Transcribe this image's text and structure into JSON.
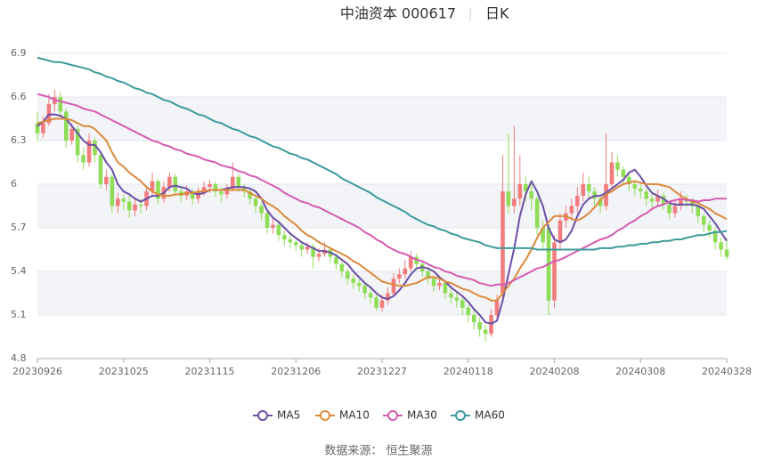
{
  "chart_data": {
    "type": "candlestick",
    "title": "中油资本 000617",
    "subtitle": "日K",
    "source": "数据来源：  恒生聚源",
    "categories": [
      "20230926",
      null,
      null,
      null,
      null,
      null,
      null,
      null,
      null,
      null,
      null,
      null,
      null,
      null,
      null,
      "20231025",
      null,
      null,
      null,
      null,
      null,
      null,
      null,
      null,
      null,
      null,
      null,
      null,
      null,
      null,
      "20231115",
      null,
      null,
      null,
      null,
      null,
      null,
      null,
      null,
      null,
      null,
      null,
      null,
      null,
      null,
      "20231206",
      null,
      null,
      null,
      null,
      null,
      null,
      null,
      null,
      null,
      null,
      null,
      null,
      null,
      null,
      "20231227",
      null,
      null,
      null,
      null,
      null,
      null,
      null,
      null,
      null,
      null,
      null,
      null,
      null,
      null,
      "20240118",
      null,
      null,
      null,
      null,
      null,
      null,
      null,
      null,
      null,
      null,
      null,
      null,
      null,
      null,
      "20240208",
      null,
      null,
      null,
      null,
      null,
      null,
      null,
      null,
      null,
      null,
      null,
      null,
      null,
      null,
      "20240308",
      null,
      null,
      null,
      null,
      null,
      null,
      null,
      null,
      null,
      null,
      null,
      null,
      null,
      null,
      "20240328"
    ],
    "open": [
      6.42,
      6.35,
      6.42,
      6.55,
      6.6,
      6.5,
      6.3,
      6.38,
      6.2,
      6.15,
      6.3,
      6.2,
      6.0,
      6.05,
      5.85,
      5.9,
      5.88,
      5.82,
      5.86,
      5.85,
      5.95,
      6.02,
      5.9,
      5.98,
      6.05,
      5.95,
      5.92,
      5.95,
      5.9,
      5.95,
      5.98,
      6.0,
      5.95,
      5.93,
      5.97,
      6.05,
      5.98,
      5.95,
      5.9,
      5.85,
      5.8,
      5.7,
      5.72,
      5.65,
      5.62,
      5.6,
      5.58,
      5.55,
      5.57,
      5.5,
      5.52,
      5.55,
      5.5,
      5.45,
      5.4,
      5.35,
      5.32,
      5.3,
      5.25,
      5.22,
      5.15,
      5.2,
      5.25,
      5.35,
      5.38,
      5.42,
      5.5,
      5.45,
      5.4,
      5.35,
      5.3,
      5.32,
      5.25,
      5.22,
      5.2,
      5.15,
      5.1,
      5.05,
      5.0,
      4.97,
      5.1,
      5.25,
      5.95,
      5.85,
      5.9,
      6.0,
      5.95,
      5.9,
      5.7,
      5.7,
      5.2,
      5.6,
      5.75,
      5.8,
      5.85,
      5.92,
      6.0,
      5.95,
      5.9,
      5.85,
      6.0,
      6.15,
      6.1,
      6.05,
      6.0,
      5.97,
      5.95,
      5.9,
      5.88,
      5.92,
      5.86,
      5.8,
      5.85,
      5.9,
      5.88,
      5.85,
      5.78,
      5.72,
      5.68,
      5.6,
      5.55
    ],
    "close": [
      6.35,
      6.42,
      6.55,
      6.6,
      6.5,
      6.3,
      6.38,
      6.2,
      6.15,
      6.3,
      6.2,
      6.0,
      6.05,
      5.85,
      5.9,
      5.88,
      5.82,
      5.86,
      5.85,
      5.95,
      6.02,
      5.9,
      5.98,
      6.05,
      5.95,
      5.92,
      5.95,
      5.9,
      5.95,
      5.98,
      6.0,
      5.95,
      5.93,
      5.97,
      6.05,
      5.98,
      5.95,
      5.9,
      5.85,
      5.8,
      5.7,
      5.72,
      5.65,
      5.62,
      5.6,
      5.58,
      5.55,
      5.57,
      5.5,
      5.52,
      5.55,
      5.5,
      5.45,
      5.4,
      5.35,
      5.32,
      5.3,
      5.25,
      5.22,
      5.15,
      5.2,
      5.25,
      5.35,
      5.38,
      5.42,
      5.5,
      5.45,
      5.4,
      5.35,
      5.3,
      5.32,
      5.25,
      5.22,
      5.2,
      5.15,
      5.1,
      5.05,
      5.0,
      4.97,
      5.1,
      5.2,
      5.95,
      5.85,
      5.9,
      6.0,
      5.95,
      5.9,
      5.7,
      5.6,
      5.2,
      5.6,
      5.75,
      5.8,
      5.85,
      5.92,
      6.0,
      5.95,
      5.9,
      5.85,
      6.0,
      6.15,
      6.1,
      6.05,
      6.0,
      5.97,
      5.95,
      5.9,
      5.88,
      5.92,
      5.86,
      5.8,
      5.85,
      5.9,
      5.88,
      5.85,
      5.78,
      5.72,
      5.68,
      5.6,
      5.55,
      5.5
    ],
    "low": [
      6.3,
      6.32,
      6.4,
      6.5,
      6.45,
      6.25,
      6.27,
      6.15,
      6.1,
      6.12,
      6.15,
      5.97,
      5.96,
      5.8,
      5.8,
      5.82,
      5.77,
      5.78,
      5.8,
      5.82,
      5.92,
      5.86,
      5.87,
      5.95,
      5.92,
      5.88,
      5.89,
      5.86,
      5.87,
      5.92,
      5.94,
      5.91,
      5.88,
      5.9,
      5.95,
      5.95,
      5.91,
      5.86,
      5.8,
      5.75,
      5.66,
      5.66,
      5.61,
      5.58,
      5.56,
      5.54,
      5.5,
      5.52,
      5.42,
      5.47,
      5.5,
      5.46,
      5.41,
      5.36,
      5.31,
      5.28,
      5.26,
      5.21,
      5.18,
      5.13,
      5.12,
      5.17,
      5.23,
      5.32,
      5.35,
      5.4,
      5.41,
      5.36,
      5.31,
      5.26,
      5.27,
      5.21,
      5.18,
      5.15,
      5.1,
      5.05,
      5.0,
      4.95,
      4.92,
      4.95,
      5.08,
      5.22,
      5.8,
      5.8,
      5.85,
      5.88,
      5.82,
      5.65,
      5.55,
      5.1,
      5.15,
      5.55,
      5.7,
      5.75,
      5.8,
      5.88,
      5.9,
      5.85,
      5.8,
      5.82,
      5.97,
      6.05,
      6.0,
      5.95,
      5.92,
      5.9,
      5.85,
      5.83,
      5.84,
      5.82,
      5.76,
      5.77,
      5.82,
      5.84,
      5.8,
      5.73,
      5.67,
      5.63,
      5.55,
      5.5,
      5.48
    ],
    "high": [
      6.5,
      6.47,
      6.62,
      6.65,
      6.63,
      6.52,
      6.42,
      6.4,
      6.25,
      6.35,
      6.32,
      6.22,
      6.1,
      6.07,
      5.94,
      5.93,
      5.92,
      5.9,
      5.9,
      5.98,
      6.08,
      6.04,
      6.02,
      6.08,
      6.07,
      5.98,
      5.99,
      5.97,
      5.98,
      6.02,
      6.03,
      6.02,
      5.98,
      6.0,
      6.15,
      6.07,
      6.0,
      5.97,
      5.92,
      5.87,
      5.82,
      5.76,
      5.74,
      5.68,
      5.65,
      5.63,
      5.6,
      5.6,
      5.59,
      5.56,
      5.6,
      5.57,
      5.52,
      5.47,
      5.42,
      5.38,
      5.35,
      5.32,
      5.28,
      5.24,
      5.24,
      5.29,
      5.39,
      5.42,
      5.48,
      5.54,
      5.52,
      5.47,
      5.42,
      5.37,
      5.36,
      5.34,
      5.28,
      5.26,
      5.22,
      5.17,
      5.13,
      5.08,
      5.03,
      5.14,
      5.24,
      6.2,
      6.35,
      6.4,
      6.2,
      6.05,
      6.0,
      5.92,
      5.75,
      5.72,
      5.65,
      5.8,
      5.85,
      5.9,
      5.98,
      6.08,
      6.05,
      5.98,
      5.93,
      6.35,
      6.22,
      6.2,
      6.12,
      6.07,
      6.03,
      6.0,
      5.97,
      5.93,
      5.96,
      5.94,
      5.88,
      5.89,
      5.95,
      5.93,
      5.9,
      5.87,
      5.8,
      5.75,
      5.7,
      5.63,
      5.63
    ],
    "up_color": "#f27c7c",
    "down_color": "#8fdc56",
    "series": [
      {
        "name": "MA5",
        "color": "#6c4fa6",
        "values": [
          6.4,
          6.43,
          6.48,
          6.48,
          6.47,
          6.45,
          6.4,
          6.35,
          6.3,
          6.27,
          6.27,
          6.22,
          6.15,
          6.1,
          6.0,
          5.95,
          5.93,
          5.9,
          5.88,
          5.9,
          5.92,
          5.92,
          5.94,
          5.98,
          5.99,
          5.98,
          5.97,
          5.94,
          5.93,
          5.94,
          5.96,
          5.96,
          5.96,
          5.97,
          5.98,
          5.98,
          5.98,
          5.97,
          5.95,
          5.9,
          5.82,
          5.77,
          5.74,
          5.7,
          5.66,
          5.63,
          5.6,
          5.58,
          5.56,
          5.54,
          5.54,
          5.53,
          5.51,
          5.48,
          5.45,
          5.4,
          5.36,
          5.32,
          5.29,
          5.25,
          5.22,
          5.21,
          5.23,
          5.27,
          5.32,
          5.38,
          5.42,
          5.43,
          5.42,
          5.4,
          5.36,
          5.33,
          5.29,
          5.26,
          5.23,
          5.19,
          5.14,
          5.1,
          5.05,
          5.04,
          5.06,
          5.2,
          5.38,
          5.56,
          5.78,
          5.93,
          6.02,
          5.95,
          5.85,
          5.7,
          5.62,
          5.6,
          5.62,
          5.68,
          5.78,
          5.86,
          5.9,
          5.92,
          5.92,
          5.94,
          5.97,
          6.0,
          6.03,
          6.08,
          6.1,
          6.05,
          5.99,
          5.94,
          5.92,
          5.9,
          5.87,
          5.86,
          5.86,
          5.86,
          5.86,
          5.85,
          5.83,
          5.78,
          5.73,
          5.67,
          5.61
        ]
      },
      {
        "name": "MA10",
        "color": "#dc8a3c",
        "values": [
          6.42,
          6.43,
          6.44,
          6.45,
          6.45,
          6.45,
          6.44,
          6.42,
          6.4,
          6.4,
          6.38,
          6.34,
          6.3,
          6.22,
          6.15,
          6.12,
          6.08,
          6.05,
          6.02,
          5.98,
          5.95,
          5.93,
          5.92,
          5.92,
          5.93,
          5.93,
          5.94,
          5.94,
          5.95,
          5.95,
          5.96,
          5.96,
          5.96,
          5.96,
          5.96,
          5.96,
          5.96,
          5.94,
          5.92,
          5.9,
          5.87,
          5.85,
          5.82,
          5.78,
          5.75,
          5.72,
          5.68,
          5.65,
          5.63,
          5.6,
          5.58,
          5.56,
          5.54,
          5.52,
          5.5,
          5.47,
          5.45,
          5.42,
          5.39,
          5.36,
          5.33,
          5.32,
          5.31,
          5.3,
          5.3,
          5.31,
          5.32,
          5.34,
          5.36,
          5.36,
          5.35,
          5.33,
          5.32,
          5.3,
          5.28,
          5.27,
          5.25,
          5.23,
          5.22,
          5.2,
          5.2,
          5.25,
          5.3,
          5.35,
          5.42,
          5.48,
          5.55,
          5.63,
          5.7,
          5.74,
          5.78,
          5.78,
          5.78,
          5.76,
          5.75,
          5.77,
          5.8,
          5.84,
          5.89,
          5.93,
          5.95,
          5.98,
          6.0,
          6.01,
          6.02,
          6.01,
          6.0,
          6.0,
          6.0,
          5.99,
          5.98,
          5.95,
          5.92,
          5.9,
          5.88,
          5.87,
          5.85,
          5.83,
          5.8,
          5.78,
          5.76
        ]
      },
      {
        "name": "MA30",
        "color": "#d45cb0",
        "values": [
          6.62,
          6.61,
          6.6,
          6.58,
          6.57,
          6.56,
          6.55,
          6.54,
          6.52,
          6.51,
          6.5,
          6.48,
          6.46,
          6.44,
          6.42,
          6.4,
          6.38,
          6.36,
          6.34,
          6.32,
          6.3,
          6.29,
          6.27,
          6.26,
          6.24,
          6.23,
          6.21,
          6.2,
          6.19,
          6.17,
          6.16,
          6.15,
          6.13,
          6.12,
          6.11,
          6.09,
          6.08,
          6.06,
          6.05,
          6.03,
          6.01,
          5.99,
          5.97,
          5.94,
          5.92,
          5.9,
          5.88,
          5.87,
          5.85,
          5.84,
          5.82,
          5.8,
          5.78,
          5.76,
          5.74,
          5.72,
          5.7,
          5.67,
          5.65,
          5.62,
          5.6,
          5.57,
          5.55,
          5.53,
          5.52,
          5.5,
          5.48,
          5.47,
          5.45,
          5.43,
          5.42,
          5.4,
          5.39,
          5.37,
          5.36,
          5.35,
          5.34,
          5.32,
          5.31,
          5.3,
          5.31,
          5.31,
          5.32,
          5.34,
          5.36,
          5.38,
          5.4,
          5.42,
          5.43,
          5.45,
          5.47,
          5.48,
          5.5,
          5.52,
          5.54,
          5.56,
          5.58,
          5.6,
          5.62,
          5.63,
          5.65,
          5.68,
          5.7,
          5.73,
          5.75,
          5.78,
          5.8,
          5.83,
          5.85,
          5.86,
          5.88,
          5.89,
          5.9,
          5.89,
          5.89,
          5.88,
          5.89,
          5.89,
          5.9,
          5.9,
          5.9
        ]
      },
      {
        "name": "MA60",
        "color": "#3e9a9c",
        "values": [
          6.87,
          6.86,
          6.85,
          6.84,
          6.84,
          6.83,
          6.82,
          6.81,
          6.8,
          6.79,
          6.77,
          6.76,
          6.74,
          6.73,
          6.71,
          6.7,
          6.68,
          6.66,
          6.65,
          6.63,
          6.62,
          6.6,
          6.58,
          6.57,
          6.55,
          6.53,
          6.52,
          6.5,
          6.48,
          6.47,
          6.45,
          6.43,
          6.42,
          6.4,
          6.38,
          6.37,
          6.35,
          6.33,
          6.32,
          6.3,
          6.28,
          6.26,
          6.25,
          6.23,
          6.21,
          6.2,
          6.18,
          6.17,
          6.15,
          6.13,
          6.11,
          6.09,
          6.07,
          6.04,
          6.02,
          6.0,
          5.98,
          5.96,
          5.94,
          5.91,
          5.89,
          5.87,
          5.85,
          5.83,
          5.81,
          5.78,
          5.76,
          5.74,
          5.72,
          5.71,
          5.69,
          5.68,
          5.66,
          5.65,
          5.63,
          5.62,
          5.61,
          5.6,
          5.58,
          5.57,
          5.56,
          5.56,
          5.56,
          5.56,
          5.56,
          5.56,
          5.56,
          5.55,
          5.55,
          5.55,
          5.55,
          5.55,
          5.55,
          5.55,
          5.55,
          5.55,
          5.55,
          5.55,
          5.56,
          5.56,
          5.56,
          5.57,
          5.57,
          5.58,
          5.58,
          5.59,
          5.59,
          5.6,
          5.6,
          5.61,
          5.61,
          5.62,
          5.62,
          5.63,
          5.64,
          5.65,
          5.65,
          5.66,
          5.67,
          5.67,
          5.68
        ]
      }
    ],
    "ylim": [
      4.8,
      6.9
    ],
    "yticks": [
      4.8,
      5.1,
      5.4,
      5.7,
      6,
      6.3,
      6.6,
      6.9
    ],
    "grid": true,
    "legend": "bottom"
  }
}
